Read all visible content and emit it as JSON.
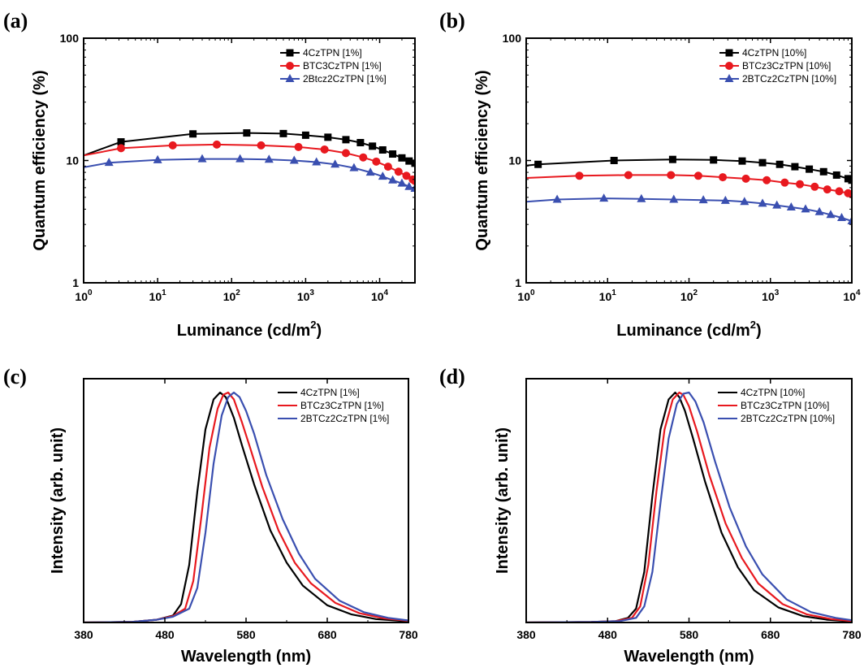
{
  "panels": [
    {
      "letter": "(a)",
      "chart_data": {
        "type": "line",
        "xlabel": "Luminance (cd/m",
        "xlabel_sup": "2",
        "xlabel_close": ")",
        "ylabel": "Quantum efficiency (%)",
        "xscale": "log",
        "yscale": "log",
        "xlim": [
          1,
          30000
        ],
        "ylim": [
          1,
          100
        ],
        "x_ticks": [
          1,
          10,
          100,
          1000,
          10000
        ],
        "y_ticks": [
          1,
          10,
          100
        ],
        "y_tick_labels": [
          "1",
          "10",
          "100"
        ],
        "legend_position": "top-right",
        "series": [
          {
            "name": "4CzTPN [1%]",
            "color": "#000000",
            "marker": "square",
            "x": [
              1,
              3.2,
              30,
              160,
              500,
              1000,
              2000,
              3500,
              5500,
              8000,
              11000,
              15000,
              20000,
              25000,
              30000
            ],
            "y": [
              11,
              14.2,
              16.5,
              16.8,
              16.6,
              16.1,
              15.5,
              14.8,
              14,
              13.1,
              12.2,
              11.3,
              10.5,
              9.9,
              9.5
            ]
          },
          {
            "name": "BTC3CzTPN [1%]",
            "color": "#e8191f",
            "marker": "circle",
            "x": [
              1,
              3.2,
              16,
              63,
              250,
              800,
              1800,
              3500,
              6000,
              9000,
              13000,
              18000,
              23000,
              28000,
              30000
            ],
            "y": [
              11,
              12.6,
              13.3,
              13.5,
              13.3,
              12.9,
              12.3,
              11.5,
              10.6,
              9.8,
              8.9,
              8.1,
              7.5,
              7,
              6.8
            ]
          },
          {
            "name": "2Btcz2CzTPN [1%]",
            "color": "#3a4fb0",
            "marker": "triangle",
            "x": [
              1,
              2.2,
              10,
              40,
              130,
              320,
              700,
              1400,
              2500,
              4500,
              7500,
              11000,
              15000,
              20000,
              25000,
              30000
            ],
            "y": [
              8.8,
              9.6,
              10.1,
              10.3,
              10.3,
              10.2,
              10,
              9.7,
              9.3,
              8.7,
              8,
              7.4,
              6.9,
              6.5,
              6.1,
              5.9
            ]
          }
        ]
      }
    },
    {
      "letter": "(b)",
      "chart_data": {
        "type": "line",
        "xlabel": "Luminance (cd/m",
        "xlabel_sup": "2",
        "xlabel_close": ")",
        "ylabel": "Quantum efficiency (%)",
        "xscale": "log",
        "yscale": "log",
        "xlim": [
          1,
          10000
        ],
        "ylim": [
          1,
          100
        ],
        "x_ticks": [
          1,
          10,
          100,
          1000,
          10000
        ],
        "y_ticks": [
          1,
          10,
          100
        ],
        "y_tick_labels": [
          "1",
          "10",
          "100"
        ],
        "legend_position": "top-right",
        "series": [
          {
            "name": "4CzTPN [10%]",
            "color": "#000000",
            "marker": "square",
            "x": [
              1,
              1.4,
              12,
              63,
              200,
              450,
              800,
              1300,
              2000,
              3000,
              4500,
              6500,
              9000,
              10000
            ],
            "y": [
              9.1,
              9.3,
              10,
              10.2,
              10.1,
              9.9,
              9.6,
              9.3,
              8.9,
              8.5,
              8.1,
              7.6,
              7.1,
              6.9
            ]
          },
          {
            "name": "BTCz3CzTPN [10%]",
            "color": "#e8191f",
            "marker": "circle",
            "x": [
              1,
              4.5,
              18,
              60,
              130,
              260,
              500,
              900,
              1500,
              2300,
              3500,
              5000,
              7000,
              9000,
              10000
            ],
            "y": [
              7.2,
              7.5,
              7.6,
              7.6,
              7.5,
              7.3,
              7.1,
              6.9,
              6.6,
              6.4,
              6.1,
              5.8,
              5.6,
              5.4,
              5.3
            ]
          },
          {
            "name": "2BTCz2CzTPN [10%]",
            "color": "#3a4fb0",
            "marker": "triangle",
            "x": [
              1,
              2.4,
              9,
              26,
              65,
              150,
              280,
              480,
              800,
              1200,
              1800,
              2700,
              4000,
              5500,
              7500,
              10000
            ],
            "y": [
              4.6,
              4.8,
              4.9,
              4.85,
              4.8,
              4.75,
              4.7,
              4.6,
              4.45,
              4.3,
              4.15,
              4,
              3.8,
              3.6,
              3.4,
              3.2
            ]
          }
        ]
      }
    },
    {
      "letter": "(c)",
      "chart_data": {
        "type": "line",
        "xlabel": "Wavelength (nm)",
        "ylabel": "Intensity (arb. unit)",
        "xlim": [
          380,
          780
        ],
        "ylim": [
          0,
          1.06
        ],
        "x_ticks": [
          380,
          480,
          580,
          680,
          780
        ],
        "legend_position": "top-right",
        "series": [
          {
            "name": "4CzTPN [1%]",
            "color": "#000000",
            "x": [
              380,
              440,
              470,
              490,
              500,
              510,
              520,
              530,
              540,
              548,
              555,
              565,
              575,
              590,
              610,
              630,
              650,
              680,
              710,
              740,
              780
            ],
            "y": [
              0,
              0.003,
              0.012,
              0.03,
              0.08,
              0.25,
              0.57,
              0.84,
              0.97,
              1,
              0.98,
              0.89,
              0.77,
              0.6,
              0.4,
              0.26,
              0.16,
              0.075,
              0.035,
              0.015,
              0.005
            ]
          },
          {
            "name": "BTCz3CzTPN [1%]",
            "color": "#e8191f",
            "x": [
              380,
              440,
              470,
              490,
              505,
              515,
              525,
              535,
              545,
              552,
              558,
              565,
              575,
              585,
              600,
              620,
              640,
              660,
              690,
              720,
              750,
              780
            ],
            "y": [
              0,
              0.003,
              0.012,
              0.028,
              0.06,
              0.18,
              0.46,
              0.76,
              0.93,
              0.99,
              1,
              0.97,
              0.87,
              0.76,
              0.59,
              0.4,
              0.26,
              0.17,
              0.085,
              0.04,
              0.018,
              0.007
            ]
          },
          {
            "name": "2BTCz2CzTPN [1%]",
            "color": "#3a4fb0",
            "x": [
              380,
              440,
              470,
              490,
              510,
              520,
              530,
              540,
              550,
              558,
              565,
              572,
              580,
              590,
              605,
              625,
              645,
              665,
              695,
              725,
              755,
              780
            ],
            "y": [
              0,
              0.003,
              0.012,
              0.025,
              0.06,
              0.15,
              0.39,
              0.69,
              0.9,
              0.98,
              1,
              0.98,
              0.92,
              0.82,
              0.64,
              0.45,
              0.3,
              0.19,
              0.095,
              0.045,
              0.02,
              0.009
            ]
          }
        ]
      }
    },
    {
      "letter": "(d)",
      "chart_data": {
        "type": "line",
        "xlabel": "Wavelength (nm)",
        "ylabel": "Intensity (arb. unit)",
        "xlim": [
          380,
          780
        ],
        "ylim": [
          0,
          1.06
        ],
        "x_ticks": [
          380,
          480,
          580,
          680,
          780
        ],
        "legend_position": "top-right",
        "series": [
          {
            "name": "4CzTPN [10%]",
            "color": "#000000",
            "x": [
              380,
              460,
              490,
              505,
              515,
              525,
              535,
              545,
              555,
              563,
              568,
              575,
              585,
              600,
              620,
              640,
              660,
              690,
              720,
              750,
              780
            ],
            "y": [
              0,
              0.002,
              0.006,
              0.02,
              0.06,
              0.22,
              0.55,
              0.84,
              0.97,
              1,
              0.98,
              0.92,
              0.8,
              0.61,
              0.39,
              0.24,
              0.14,
              0.065,
              0.028,
              0.012,
              0.005
            ]
          },
          {
            "name": "BTCz3CzTPN [10%]",
            "color": "#e8191f",
            "x": [
              380,
              460,
              490,
              510,
              520,
              530,
              540,
              550,
              560,
              568,
              573,
              580,
              590,
              605,
              625,
              645,
              665,
              695,
              725,
              755,
              780
            ],
            "y": [
              0,
              0.002,
              0.006,
              0.02,
              0.07,
              0.25,
              0.57,
              0.84,
              0.97,
              1,
              0.99,
              0.94,
              0.83,
              0.64,
              0.43,
              0.28,
              0.17,
              0.08,
              0.035,
              0.015,
              0.006
            ]
          },
          {
            "name": "2BTCz2CzTPN [10%]",
            "color": "#3a4fb0",
            "x": [
              380,
              460,
              495,
              515,
              525,
              535,
              545,
              555,
              565,
              573,
              580,
              588,
              598,
              612,
              630,
              650,
              670,
              700,
              730,
              760,
              780
            ],
            "y": [
              0,
              0.002,
              0.006,
              0.02,
              0.07,
              0.22,
              0.52,
              0.8,
              0.95,
              0.995,
              1,
              0.96,
              0.87,
              0.7,
              0.5,
              0.33,
              0.21,
              0.1,
              0.045,
              0.02,
              0.01
            ]
          }
        ]
      }
    }
  ]
}
